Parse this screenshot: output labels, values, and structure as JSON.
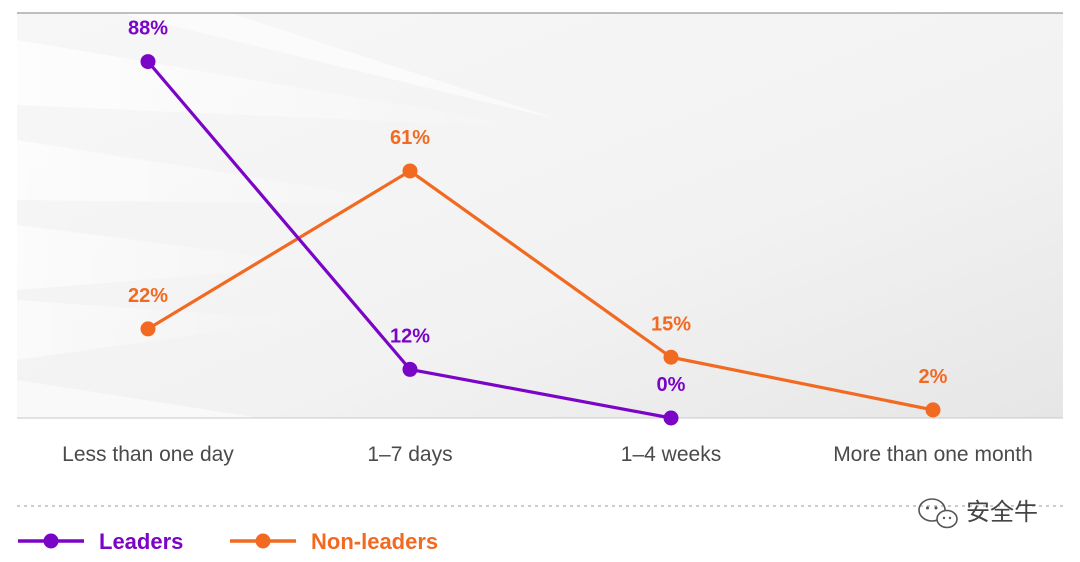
{
  "chart_data": {
    "type": "line",
    "categories": [
      "Less than one day",
      "1–7 days",
      "1–4 weeks",
      "More than one month"
    ],
    "series": [
      {
        "name": "Leaders",
        "color": "#7b05c6",
        "values": [
          88,
          12,
          0,
          null
        ],
        "labels": [
          "88%",
          "12%",
          "0%",
          null
        ]
      },
      {
        "name": "Non-leaders",
        "color": "#f26a21",
        "values": [
          22,
          61,
          15,
          2
        ],
        "labels": [
          "22%",
          "61%",
          "15%",
          "2%"
        ]
      }
    ],
    "ylim": [
      0,
      100
    ],
    "grid": false,
    "legend_position": "bottom-left",
    "title": "",
    "xlabel": "",
    "ylabel": ""
  },
  "watermark": {
    "text": "安全牛",
    "icon": "wechat-icon"
  }
}
